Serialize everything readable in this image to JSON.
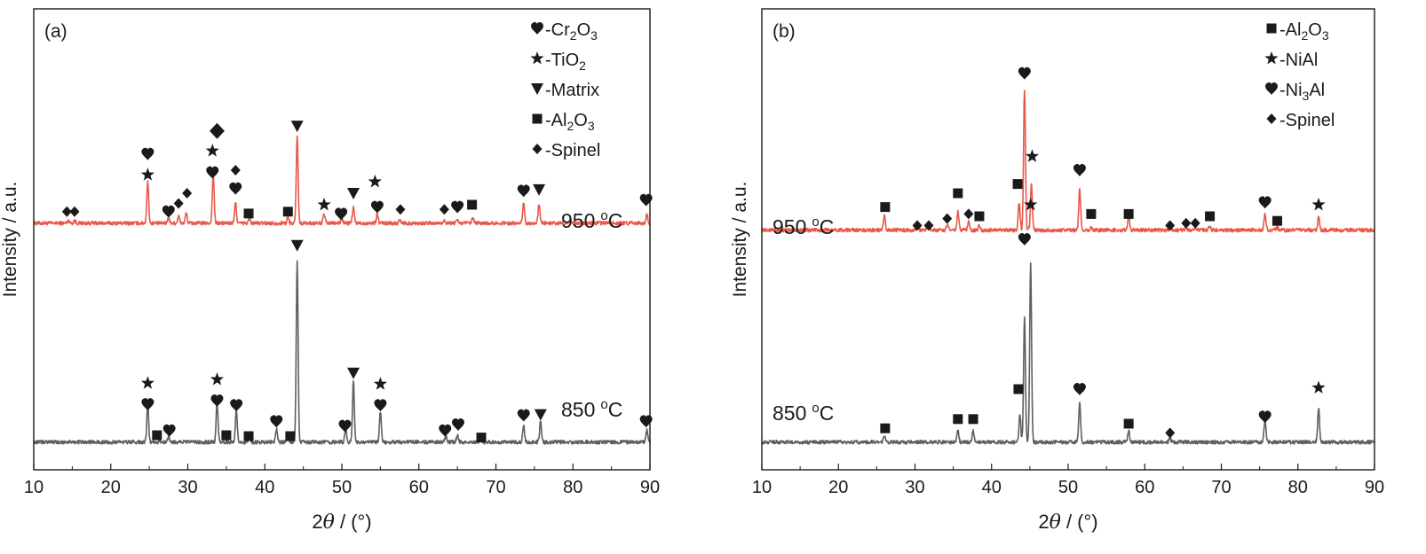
{
  "chart_data": [
    {
      "type": "line",
      "panel_label": "(a)",
      "xlabel_main": "2",
      "xlabel_theta": "θ",
      "xlabel_rest": " / (°)",
      "ylabel": "Intensity / a.u.",
      "xlim": [
        10,
        90
      ],
      "ylim": [
        0,
        1
      ],
      "x_ticks": [
        10,
        20,
        30,
        40,
        50,
        60,
        70,
        80,
        90
      ],
      "legend": [
        {
          "sym": "heart",
          "prefix": "-Cr",
          "sub1": "2",
          "mid": "O",
          "sub2": "3"
        },
        {
          "sym": "star",
          "prefix": "-TiO",
          "sub1": "2",
          "mid": "",
          "sub2": ""
        },
        {
          "sym": "tri",
          "prefix": "-Matrix",
          "sub1": "",
          "mid": "",
          "sub2": ""
        },
        {
          "sym": "square",
          "prefix": "-Al",
          "sub1": "2",
          "mid": "O",
          "sub2": "3"
        },
        {
          "sym": "diamond",
          "prefix": "-Spinel",
          "sub1": "",
          "mid": "",
          "sub2": ""
        }
      ],
      "series": [
        {
          "name": "950 °C",
          "label_num": "950",
          "label_deg": "o",
          "label_unit": "C",
          "color": "#e8584a",
          "baseline": 0.535,
          "noise": 0.004,
          "peaks": [
            [
              14.5,
              0.006
            ],
            [
              15.3,
              0.006
            ],
            [
              24.8,
              0.09
            ],
            [
              27.5,
              0.012
            ],
            [
              28.8,
              0.016
            ],
            [
              29.8,
              0.022
            ],
            [
              33.3,
              0.105
            ],
            [
              36.2,
              0.045
            ],
            [
              38,
              0.01
            ],
            [
              43,
              0.012
            ],
            [
              44.2,
              0.19
            ],
            [
              47.7,
              0.02
            ],
            [
              50,
              0.012
            ],
            [
              51.5,
              0.035
            ],
            [
              54.6,
              0.02
            ],
            [
              57.5,
              0.008
            ],
            [
              63.3,
              0.007
            ],
            [
              65,
              0.008
            ],
            [
              67,
              0.01
            ],
            [
              73.6,
              0.045
            ],
            [
              75.6,
              0.04
            ],
            [
              89.6,
              0.02
            ]
          ],
          "markers": [
            {
              "x": 14.3,
              "y": 0.56,
              "s": "diamond"
            },
            {
              "x": 15.3,
              "y": 0.56,
              "s": "diamond"
            },
            {
              "x": 24.8,
              "y": 0.64,
              "s": "star"
            },
            {
              "x": 24.8,
              "y": 0.685,
              "s": "heart"
            },
            {
              "x": 27.5,
              "y": 0.56,
              "s": "heart"
            },
            {
              "x": 28.8,
              "y": 0.578,
              "s": "diamond"
            },
            {
              "x": 29.9,
              "y": 0.6,
              "s": "diamond"
            },
            {
              "x": 33.2,
              "y": 0.645,
              "s": "heart"
            },
            {
              "x": 33.2,
              "y": 0.692,
              "s": "star"
            },
            {
              "x": 33.8,
              "y": 0.735,
              "s": "diamond-big"
            },
            {
              "x": 36.2,
              "y": 0.61,
              "s": "heart"
            },
            {
              "x": 36.2,
              "y": 0.65,
              "s": "diamond"
            },
            {
              "x": 37.9,
              "y": 0.556,
              "s": "square"
            },
            {
              "x": 43.0,
              "y": 0.56,
              "s": "square"
            },
            {
              "x": 44.2,
              "y": 0.746,
              "s": "tri"
            },
            {
              "x": 47.7,
              "y": 0.575,
              "s": "star"
            },
            {
              "x": 49.9,
              "y": 0.555,
              "s": "heart"
            },
            {
              "x": 51.5,
              "y": 0.6,
              "s": "tri"
            },
            {
              "x": 54.6,
              "y": 0.57,
              "s": "heart"
            },
            {
              "x": 54.3,
              "y": 0.625,
              "s": "star"
            },
            {
              "x": 57.6,
              "y": 0.565,
              "s": "diamond"
            },
            {
              "x": 63.3,
              "y": 0.565,
              "s": "diamond"
            },
            {
              "x": 65.0,
              "y": 0.57,
              "s": "heart"
            },
            {
              "x": 66.9,
              "y": 0.575,
              "s": "square"
            },
            {
              "x": 73.6,
              "y": 0.605,
              "s": "heart"
            },
            {
              "x": 75.6,
              "y": 0.608,
              "s": "tri"
            },
            {
              "x": 89.5,
              "y": 0.585,
              "s": "heart"
            }
          ]
        },
        {
          "name": "850 °C",
          "label_num": "850",
          "label_deg": "o",
          "label_unit": "C",
          "color": "#5f5f5f",
          "baseline": 0.06,
          "noise": 0.004,
          "peaks": [
            [
              24.8,
              0.08
            ],
            [
              27.5,
              0.012
            ],
            [
              33.8,
              0.085
            ],
            [
              36.3,
              0.07
            ],
            [
              38,
              0.01
            ],
            [
              41.5,
              0.03
            ],
            [
              43,
              0.012
            ],
            [
              44.2,
              0.39
            ],
            [
              50.5,
              0.03
            ],
            [
              51.5,
              0.13
            ],
            [
              55,
              0.065
            ],
            [
              63.5,
              0.012
            ],
            [
              65,
              0.015
            ],
            [
              68,
              0.008
            ],
            [
              73.6,
              0.035
            ],
            [
              75.8,
              0.045
            ],
            [
              89.6,
              0.025
            ]
          ],
          "markers": [
            {
              "x": 24.8,
              "y": 0.188,
              "s": "star"
            },
            {
              "x": 24.8,
              "y": 0.142,
              "s": "heart"
            },
            {
              "x": 26.0,
              "y": 0.075,
              "s": "square"
            },
            {
              "x": 27.6,
              "y": 0.085,
              "s": "heart"
            },
            {
              "x": 33.8,
              "y": 0.196,
              "s": "star"
            },
            {
              "x": 33.8,
              "y": 0.15,
              "s": "heart"
            },
            {
              "x": 35.0,
              "y": 0.075,
              "s": "square"
            },
            {
              "x": 36.3,
              "y": 0.14,
              "s": "heart"
            },
            {
              "x": 37.9,
              "y": 0.073,
              "s": "square"
            },
            {
              "x": 41.5,
              "y": 0.105,
              "s": "heart"
            },
            {
              "x": 43.3,
              "y": 0.073,
              "s": "square"
            },
            {
              "x": 44.2,
              "y": 0.487,
              "s": "tri"
            },
            {
              "x": 50.4,
              "y": 0.095,
              "s": "heart"
            },
            {
              "x": 51.5,
              "y": 0.21,
              "s": "tri"
            },
            {
              "x": 55.0,
              "y": 0.186,
              "s": "star"
            },
            {
              "x": 55.0,
              "y": 0.14,
              "s": "heart"
            },
            {
              "x": 63.4,
              "y": 0.085,
              "s": "heart"
            },
            {
              "x": 65.1,
              "y": 0.098,
              "s": "heart"
            },
            {
              "x": 68.1,
              "y": 0.07,
              "s": "square"
            },
            {
              "x": 73.6,
              "y": 0.118,
              "s": "heart"
            },
            {
              "x": 75.8,
              "y": 0.12,
              "s": "tri"
            },
            {
              "x": 89.5,
              "y": 0.105,
              "s": "heart"
            }
          ]
        }
      ]
    },
    {
      "type": "line",
      "panel_label": "(b)",
      "xlabel_main": "2",
      "xlabel_theta": "θ",
      "xlabel_rest": " / (°)",
      "ylabel": "Intensity / a.u.",
      "xlim": [
        10,
        90
      ],
      "ylim": [
        0,
        1
      ],
      "x_ticks": [
        10,
        20,
        30,
        40,
        50,
        60,
        70,
        80,
        90
      ],
      "legend": [
        {
          "sym": "square",
          "prefix": "-Al",
          "sub1": "2",
          "mid": "O",
          "sub2": "3"
        },
        {
          "sym": "star",
          "prefix": "-NiAl",
          "sub1": "",
          "mid": "",
          "sub2": ""
        },
        {
          "sym": "heart",
          "prefix": "-Ni",
          "sub1": "3",
          "mid": "Al",
          "sub2": ""
        },
        {
          "sym": "diamond",
          "prefix": "-Spinel",
          "sub1": "",
          "mid": "",
          "sub2": ""
        }
      ],
      "series": [
        {
          "name": "950 °C",
          "label_num": "950",
          "label_deg": "o",
          "label_unit": "C",
          "color": "#e8584a",
          "baseline": 0.52,
          "noise": 0.004,
          "peaks": [
            [
              26,
              0.03
            ],
            [
              30.3,
              0.008
            ],
            [
              31.8,
              0.008
            ],
            [
              34.2,
              0.012
            ],
            [
              35.6,
              0.04
            ],
            [
              37,
              0.02
            ],
            [
              38.4,
              0.012
            ],
            [
              43.6,
              0.06
            ],
            [
              44.3,
              0.305
            ],
            [
              45.2,
              0.1
            ],
            [
              51.5,
              0.09
            ],
            [
              53,
              0.008
            ],
            [
              57.9,
              0.03
            ],
            [
              63.3,
              0.005
            ],
            [
              65.4,
              0.006
            ],
            [
              66.6,
              0.006
            ],
            [
              68.5,
              0.01
            ],
            [
              75.7,
              0.035
            ],
            [
              77.3,
              0.006
            ],
            [
              82.7,
              0.03
            ]
          ],
          "markers": [
            {
              "x": 26.1,
              "y": 0.57,
              "s": "square"
            },
            {
              "x": 30.3,
              "y": 0.53,
              "s": "diamond"
            },
            {
              "x": 31.8,
              "y": 0.53,
              "s": "diamond"
            },
            {
              "x": 34.2,
              "y": 0.545,
              "s": "diamond"
            },
            {
              "x": 35.6,
              "y": 0.6,
              "s": "square"
            },
            {
              "x": 37.0,
              "y": 0.555,
              "s": "diamond"
            },
            {
              "x": 38.4,
              "y": 0.55,
              "s": "square"
            },
            {
              "x": 43.4,
              "y": 0.62,
              "s": "square"
            },
            {
              "x": 44.3,
              "y": 0.86,
              "s": "heart"
            },
            {
              "x": 45.3,
              "y": 0.68,
              "s": "star"
            },
            {
              "x": 51.5,
              "y": 0.65,
              "s": "heart"
            },
            {
              "x": 53.0,
              "y": 0.555,
              "s": "square"
            },
            {
              "x": 57.9,
              "y": 0.555,
              "s": "square"
            },
            {
              "x": 63.3,
              "y": 0.53,
              "s": "diamond"
            },
            {
              "x": 65.4,
              "y": 0.535,
              "s": "diamond"
            },
            {
              "x": 66.6,
              "y": 0.535,
              "s": "diamond"
            },
            {
              "x": 68.5,
              "y": 0.55,
              "s": "square"
            },
            {
              "x": 75.7,
              "y": 0.58,
              "s": "heart"
            },
            {
              "x": 77.3,
              "y": 0.54,
              "s": "square"
            },
            {
              "x": 82.7,
              "y": 0.575,
              "s": "star"
            }
          ]
        },
        {
          "name": "850 °C",
          "label_num": "850",
          "label_deg": "o",
          "label_unit": "C",
          "color": "#5f5f5f",
          "baseline": 0.06,
          "noise": 0.004,
          "peaks": [
            [
              26,
              0.012
            ],
            [
              35.6,
              0.025
            ],
            [
              37.6,
              0.025
            ],
            [
              43.7,
              0.06
            ],
            [
              44.3,
              0.27
            ],
            [
              45.1,
              0.385
            ],
            [
              51.5,
              0.085
            ],
            [
              57.9,
              0.025
            ],
            [
              63.3,
              0.008
            ],
            [
              75.7,
              0.048
            ],
            [
              82.7,
              0.075
            ]
          ],
          "markers": [
            {
              "x": 26.1,
              "y": 0.09,
              "s": "square"
            },
            {
              "x": 35.6,
              "y": 0.11,
              "s": "square"
            },
            {
              "x": 37.6,
              "y": 0.11,
              "s": "square"
            },
            {
              "x": 43.5,
              "y": 0.175,
              "s": "square"
            },
            {
              "x": 44.3,
              "y": 0.5,
              "s": "heart"
            },
            {
              "x": 45.1,
              "y": 0.575,
              "s": "star"
            },
            {
              "x": 51.5,
              "y": 0.175,
              "s": "heart"
            },
            {
              "x": 57.9,
              "y": 0.1,
              "s": "square"
            },
            {
              "x": 63.3,
              "y": 0.08,
              "s": "diamond"
            },
            {
              "x": 75.7,
              "y": 0.115,
              "s": "heart"
            },
            {
              "x": 82.7,
              "y": 0.178,
              "s": "star"
            }
          ]
        }
      ]
    }
  ]
}
